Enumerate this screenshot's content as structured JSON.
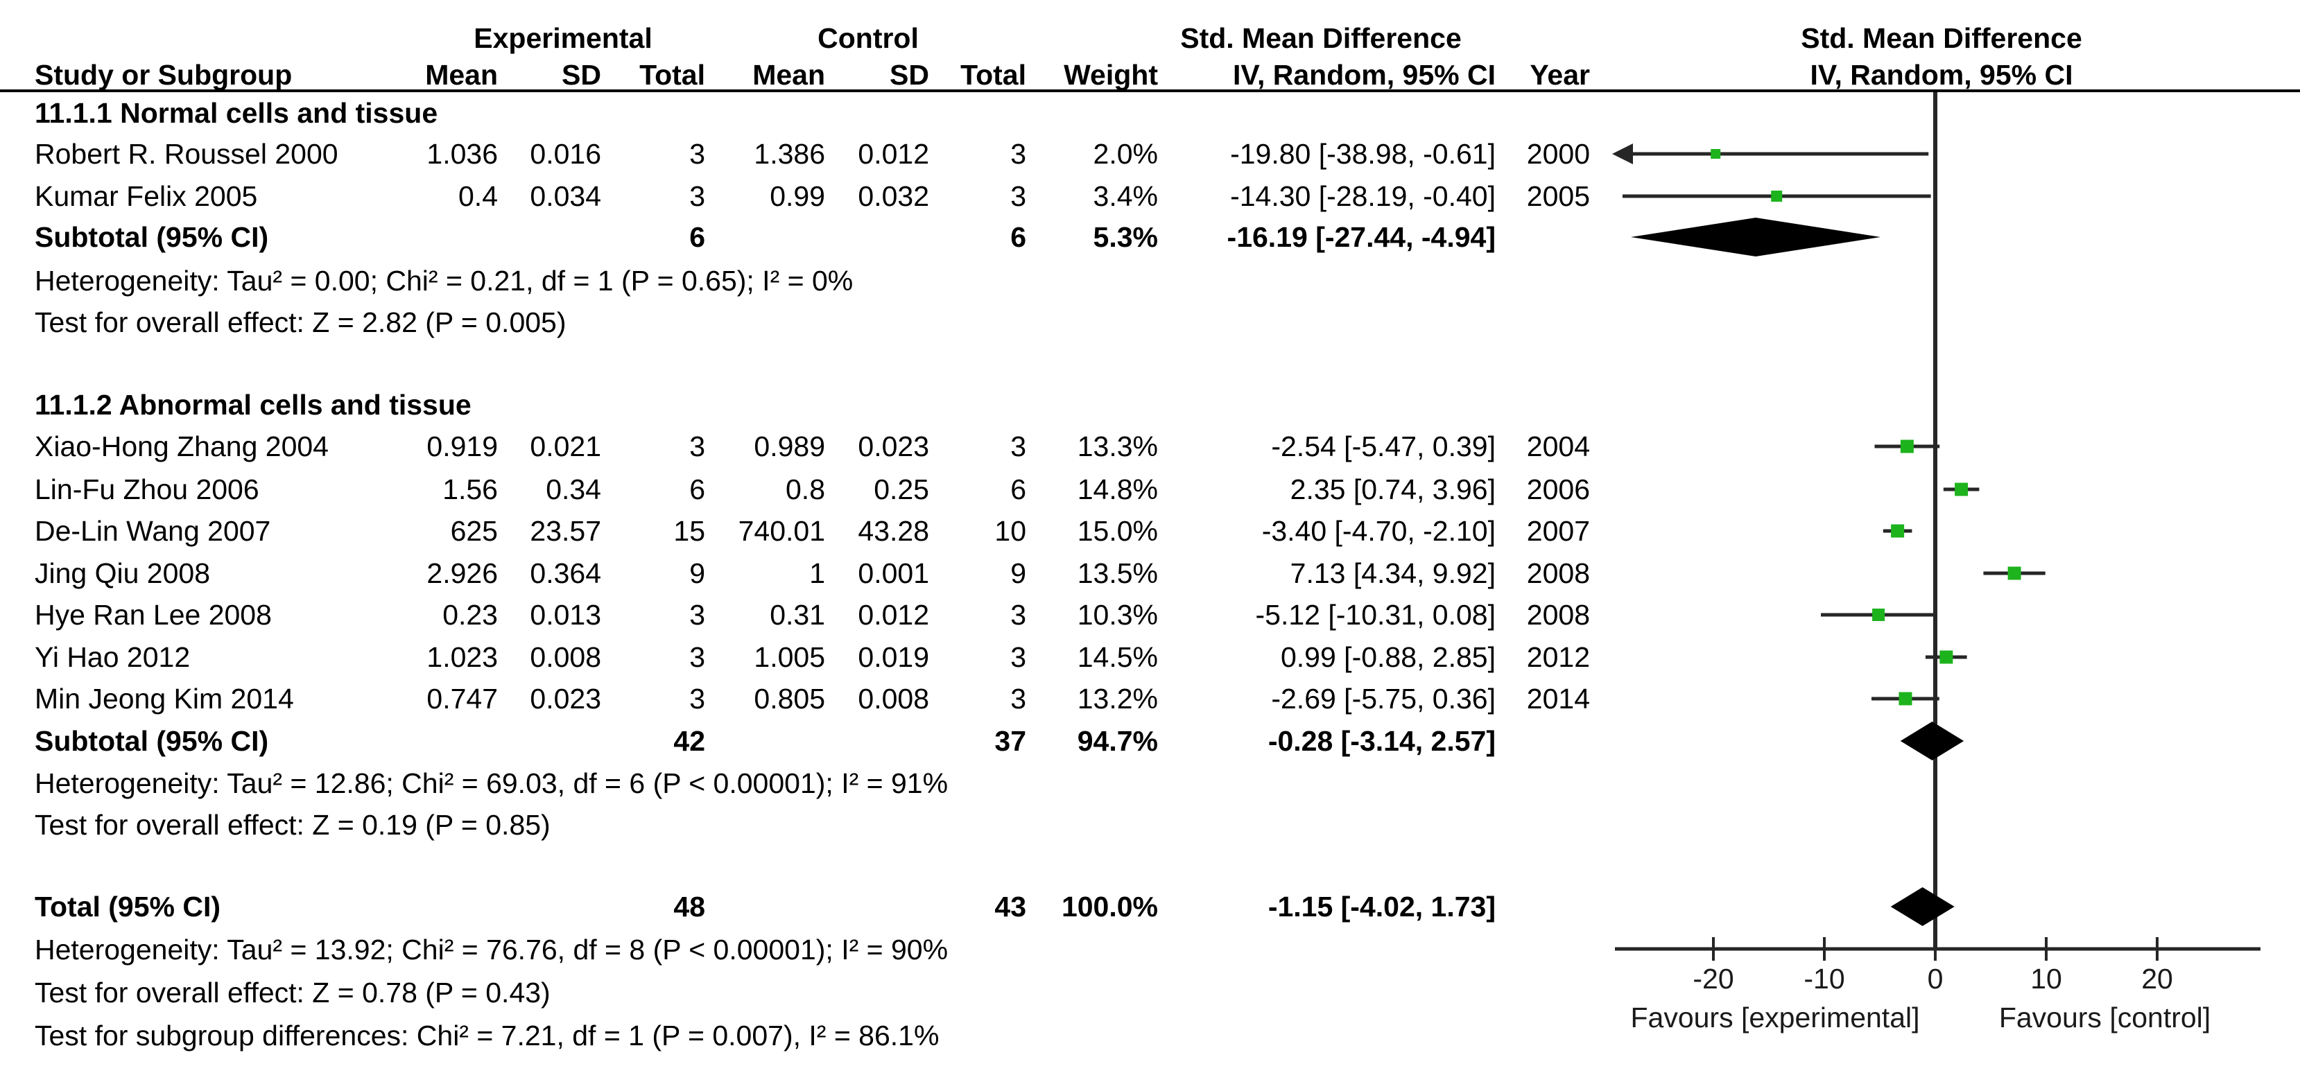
{
  "labels": {
    "group_experimental": "Experimental",
    "group_control": "Control",
    "effect_header": "Std. Mean Difference",
    "method_header": "IV, Random, 95% CI",
    "plot_effect_header": "Std. Mean Difference",
    "plot_method_header": "IV, Random, 95% CI",
    "study_col": "Study or Subgroup",
    "mean": "Mean",
    "sd": "SD",
    "total": "Total",
    "weight": "Weight",
    "year": "Year",
    "favours_left": "Favours [experimental]",
    "favours_right": "Favours [control]"
  },
  "colors": {
    "marker_green": "#1DB31D",
    "line_dark": "#262626",
    "diamond_black": "#000000"
  },
  "chart_data": {
    "type": "forest",
    "title": "Std. Mean Difference  IV, Random, 95% CI",
    "effect_measure": "Std. Mean Difference",
    "model": "IV, Random, 95% CI",
    "axis": {
      "ticks": [
        -20,
        -10,
        0,
        10,
        20
      ],
      "xmin": -28.9,
      "xmax": 29.3,
      "zero": 0,
      "favours_left": "Favours [experimental]",
      "favours_right": "Favours [control]"
    },
    "sections": [
      {
        "title": "11.1.1 Normal cells and tissue",
        "studies": [
          {
            "study": "Robert R. Roussel 2000",
            "exp": {
              "mean": "1.036",
              "sd": "0.016",
              "total": "3"
            },
            "ctrl": {
              "mean": "1.386",
              "sd": "0.012",
              "total": "3"
            },
            "weight": "2.0%",
            "ci_text": "-19.80 [-38.98, -0.61]",
            "year": "2000",
            "smd": -19.8,
            "ci_low": -38.98,
            "ci_high": -0.61,
            "marker_px": 14
          },
          {
            "study": "Kumar Felix 2005",
            "exp": {
              "mean": "0.4",
              "sd": "0.034",
              "total": "3"
            },
            "ctrl": {
              "mean": "0.99",
              "sd": "0.032",
              "total": "3"
            },
            "weight": "3.4%",
            "ci_text": "-14.30 [-28.19, -0.40]",
            "year": "2005",
            "smd": -14.3,
            "ci_low": -28.19,
            "ci_high": -0.4,
            "marker_px": 16
          }
        ],
        "subtotal": {
          "label": "Subtotal (95% CI)",
          "total_exp": "6",
          "total_ctrl": "6",
          "weight": "5.3%",
          "ci_text": "-16.19 [-27.44, -4.94]",
          "smd": -16.19,
          "ci_low": -27.44,
          "ci_high": -4.94
        },
        "heterogeneity": "Heterogeneity: Tau² = 0.00; Chi² = 0.21, df = 1 (P = 0.65); I² = 0%",
        "overall_effect": "Test for overall effect: Z = 2.82 (P = 0.005)"
      },
      {
        "title": "11.1.2 Abnormal cells and tissue",
        "studies": [
          {
            "study": "Xiao-Hong Zhang 2004",
            "exp": {
              "mean": "0.919",
              "sd": "0.021",
              "total": "3"
            },
            "ctrl": {
              "mean": "0.989",
              "sd": "0.023",
              "total": "3"
            },
            "weight": "13.3%",
            "ci_text": "-2.54 [-5.47, 0.39]",
            "year": "2004",
            "smd": -2.54,
            "ci_low": -5.47,
            "ci_high": 0.39,
            "marker_px": 19
          },
          {
            "study": "Lin-Fu Zhou 2006",
            "exp": {
              "mean": "1.56",
              "sd": "0.34",
              "total": "6"
            },
            "ctrl": {
              "mean": "0.8",
              "sd": "0.25",
              "total": "6"
            },
            "weight": "14.8%",
            "ci_text": "2.35 [0.74, 3.96]",
            "year": "2006",
            "smd": 2.35,
            "ci_low": 0.74,
            "ci_high": 3.96,
            "marker_px": 19
          },
          {
            "study": "De-Lin Wang 2007",
            "exp": {
              "mean": "625",
              "sd": "23.57",
              "total": "15"
            },
            "ctrl": {
              "mean": "740.01",
              "sd": "43.28",
              "total": "10"
            },
            "weight": "15.0%",
            "ci_text": "-3.40 [-4.70, -2.10]",
            "year": "2007",
            "smd": -3.4,
            "ci_low": -4.7,
            "ci_high": -2.1,
            "marker_px": 19
          },
          {
            "study": "Jing Qiu 2008",
            "exp": {
              "mean": "2.926",
              "sd": "0.364",
              "total": "9"
            },
            "ctrl": {
              "mean": "1",
              "sd": "0.001",
              "total": "9"
            },
            "weight": "13.5%",
            "ci_text": "7.13 [4.34, 9.92]",
            "year": "2008",
            "smd": 7.13,
            "ci_low": 4.34,
            "ci_high": 9.92,
            "marker_px": 19
          },
          {
            "study": "Hye Ran Lee 2008",
            "exp": {
              "mean": "0.23",
              "sd": "0.013",
              "total": "3"
            },
            "ctrl": {
              "mean": "0.31",
              "sd": "0.012",
              "total": "3"
            },
            "weight": "10.3%",
            "ci_text": "-5.12 [-10.31, 0.08]",
            "year": "2008",
            "smd": -5.12,
            "ci_low": -10.31,
            "ci_high": 0.08,
            "marker_px": 18
          },
          {
            "study": "Yi Hao 2012",
            "exp": {
              "mean": "1.023",
              "sd": "0.008",
              "total": "3"
            },
            "ctrl": {
              "mean": "1.005",
              "sd": "0.019",
              "total": "3"
            },
            "weight": "14.5%",
            "ci_text": "0.99 [-0.88, 2.85]",
            "year": "2012",
            "smd": 0.99,
            "ci_low": -0.88,
            "ci_high": 2.85,
            "marker_px": 19
          },
          {
            "study": "Min Jeong Kim 2014",
            "exp": {
              "mean": "0.747",
              "sd": "0.023",
              "total": "3"
            },
            "ctrl": {
              "mean": "0.805",
              "sd": "0.008",
              "total": "3"
            },
            "weight": "13.2%",
            "ci_text": "-2.69 [-5.75, 0.36]",
            "year": "2014",
            "smd": -2.69,
            "ci_low": -5.75,
            "ci_high": 0.36,
            "marker_px": 19
          }
        ],
        "subtotal": {
          "label": "Subtotal (95% CI)",
          "total_exp": "42",
          "total_ctrl": "37",
          "weight": "94.7%",
          "ci_text": "-0.28 [-3.14, 2.57]",
          "smd": -0.28,
          "ci_low": -3.14,
          "ci_high": 2.57
        },
        "heterogeneity": "Heterogeneity: Tau² = 12.86; Chi² = 69.03, df = 6 (P < 0.00001); I² = 91%",
        "overall_effect": "Test for overall effect: Z = 0.19 (P = 0.85)"
      }
    ],
    "total": {
      "label": "Total (95% CI)",
      "total_exp": "48",
      "total_ctrl": "43",
      "weight": "100.0%",
      "ci_text": "-1.15 [-4.02, 1.73]",
      "smd": -1.15,
      "ci_low": -4.02,
      "ci_high": 1.73
    },
    "footnotes": [
      "Heterogeneity: Tau² = 13.92; Chi² = 76.76, df = 8 (P < 0.00001); I² = 90%",
      "Test for overall effect: Z = 0.78 (P = 0.43)",
      "Test for subgroup differences: Chi² = 7.21, df = 1 (P = 0.007), I² = 86.1%"
    ]
  }
}
